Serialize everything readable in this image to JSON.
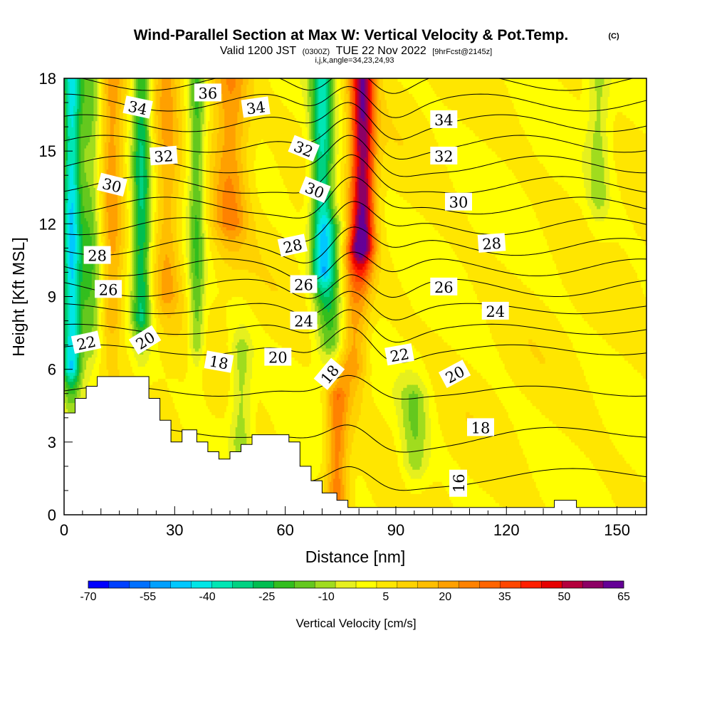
{
  "chart_data": {
    "type": "heatmap",
    "title": "Wind-Parallel Section at Max W: Vertical Velocity & Pot.Temp.",
    "title_mark": "(C)",
    "subtitle": {
      "valid": "Valid 1200 JST",
      "utc": "(0300Z)",
      "date": "TUE 22 Nov 2022",
      "fcst": "[9hrFcst@2145z]"
    },
    "indices": "i,j,k,angle=34,23,24,93",
    "xlabel": "Distance [nm]",
    "ylabel": "Height [Kft MSL]",
    "xlim": [
      0,
      158
    ],
    "ylim": [
      0,
      18
    ],
    "x_ticks": [
      {
        "value": 0,
        "label": "0"
      },
      {
        "value": 30,
        "label": "30"
      },
      {
        "value": 60,
        "label": "60"
      },
      {
        "value": 90,
        "label": "90"
      },
      {
        "value": 120,
        "label": "120"
      },
      {
        "value": 150,
        "label": "150"
      }
    ],
    "y_ticks": [
      {
        "value": 0,
        "label": "0"
      },
      {
        "value": 3,
        "label": "3"
      },
      {
        "value": 6,
        "label": "6"
      },
      {
        "value": 9,
        "label": "9"
      },
      {
        "value": 12,
        "label": "12"
      },
      {
        "value": 15,
        "label": "15"
      },
      {
        "value": 18,
        "label": "18"
      }
    ],
    "colorbar": {
      "label": "Vertical Velocity [cm/s]",
      "colors": [
        "#0000ff",
        "#0040ff",
        "#0070ff",
        "#00a0ff",
        "#00c8ff",
        "#00e6e6",
        "#00e6b4",
        "#00d282",
        "#00be50",
        "#32be1e",
        "#64c81e",
        "#a0dc1e",
        "#e6f01e",
        "#ffff00",
        "#ffe600",
        "#ffd200",
        "#ffbe00",
        "#ffa000",
        "#ff8200",
        "#ff6400",
        "#ff4600",
        "#ff1e00",
        "#e60000",
        "#b4003c",
        "#8c0064",
        "#640096"
      ],
      "labels": [
        {
          "value": -70,
          "label": "-70"
        },
        {
          "value": -55,
          "label": "-55"
        },
        {
          "value": -40,
          "label": "-40"
        },
        {
          "value": -25,
          "label": "-25"
        },
        {
          "value": -10,
          "label": "-10"
        },
        {
          "value": 5,
          "label": "5"
        },
        {
          "value": 20,
          "label": "20"
        },
        {
          "value": 35,
          "label": "35"
        },
        {
          "value": 50,
          "label": "50"
        },
        {
          "value": 65,
          "label": "65"
        }
      ],
      "range": [
        -70,
        65
      ]
    },
    "vertical_velocity_features": [
      {
        "x": 2,
        "ztop": 18,
        "zbot": 6,
        "amp": -45,
        "sx": 2.5
      },
      {
        "x": 7,
        "ztop": 18,
        "zbot": 7,
        "amp": -18,
        "sx": 3
      },
      {
        "x": 21,
        "ztop": 18,
        "zbot": 8,
        "amp": -30,
        "sx": 2.5
      },
      {
        "x": 36,
        "ztop": 18,
        "zbot": 7,
        "amp": -20,
        "sx": 2.2
      },
      {
        "x": 70,
        "ztop": 18,
        "zbot": 10,
        "amp": -38,
        "sx": 3
      },
      {
        "x": 73,
        "ztop": 12,
        "zbot": 7,
        "amp": -22,
        "sx": 4
      },
      {
        "x": 95,
        "ztop": 5,
        "zbot": 2,
        "amp": -15,
        "sx": 4
      },
      {
        "x": 81,
        "ztop": 18,
        "zbot": 11,
        "amp": 55,
        "sx": 3.2
      },
      {
        "x": 78,
        "ztop": 11,
        "zbot": 6,
        "amp": 22,
        "sx": 4
      },
      {
        "x": 74,
        "ztop": 5,
        "zbot": 0,
        "amp": 25,
        "sx": 3
      },
      {
        "x": 45,
        "ztop": 18,
        "zbot": 12,
        "amp": 22,
        "sx": 5
      },
      {
        "x": 13,
        "ztop": 18,
        "zbot": 8,
        "amp": 18,
        "sx": 3
      },
      {
        "x": 28,
        "ztop": 18,
        "zbot": 9,
        "amp": 16,
        "sx": 3.5
      },
      {
        "x": 145,
        "ztop": 18,
        "zbot": 13,
        "amp": -12,
        "sx": 3
      },
      {
        "x": 48,
        "ztop": 7,
        "zbot": 3,
        "amp": -14,
        "sx": 3
      }
    ],
    "isentropes_c": [
      16,
      17,
      18,
      19,
      20,
      21,
      22,
      23,
      24,
      25,
      26,
      27,
      28,
      29,
      30,
      31,
      32,
      33,
      34,
      35,
      36
    ],
    "contour_labels": [
      {
        "text": "36",
        "x": 39,
        "z": 17.4,
        "angle": 0
      },
      {
        "text": "34",
        "x": 20,
        "z": 16.8,
        "angle": 12
      },
      {
        "text": "34",
        "x": 52,
        "z": 16.8,
        "angle": -8
      },
      {
        "text": "34",
        "x": 103,
        "z": 16.3,
        "angle": 0
      },
      {
        "text": "32",
        "x": 27,
        "z": 14.8,
        "angle": -4
      },
      {
        "text": "32",
        "x": 65,
        "z": 15.1,
        "angle": 22
      },
      {
        "text": "32",
        "x": 103,
        "z": 14.8,
        "angle": 0
      },
      {
        "text": "30",
        "x": 13,
        "z": 13.6,
        "angle": 14
      },
      {
        "text": "30",
        "x": 68,
        "z": 13.4,
        "angle": 22
      },
      {
        "text": "30",
        "x": 107,
        "z": 12.9,
        "angle": 0
      },
      {
        "text": "28",
        "x": 9,
        "z": 10.7,
        "angle": 0
      },
      {
        "text": "28",
        "x": 62,
        "z": 11.1,
        "angle": -12
      },
      {
        "text": "28",
        "x": 116,
        "z": 11.2,
        "angle": -4
      },
      {
        "text": "26",
        "x": 12,
        "z": 9.3,
        "angle": 0
      },
      {
        "text": "26",
        "x": 65,
        "z": 9.5,
        "angle": 0
      },
      {
        "text": "26",
        "x": 103,
        "z": 9.4,
        "angle": 0
      },
      {
        "text": "24",
        "x": 65,
        "z": 8.0,
        "angle": 0
      },
      {
        "text": "24",
        "x": 117,
        "z": 8.4,
        "angle": 0
      },
      {
        "text": "22",
        "x": 6,
        "z": 7.1,
        "angle": -12
      },
      {
        "text": "22",
        "x": 91,
        "z": 6.6,
        "angle": -10
      },
      {
        "text": "20",
        "x": 22,
        "z": 7.2,
        "angle": -32
      },
      {
        "text": "20",
        "x": 58,
        "z": 6.5,
        "angle": 0
      },
      {
        "text": "20",
        "x": 106,
        "z": 5.8,
        "angle": -28
      },
      {
        "text": "18",
        "x": 42,
        "z": 6.3,
        "angle": 10
      },
      {
        "text": "18",
        "x": 72,
        "z": 5.8,
        "angle": -50
      },
      {
        "text": "18",
        "x": 113,
        "z": 3.6,
        "angle": 0
      },
      {
        "text": "16",
        "x": 107,
        "z": 1.3,
        "angle": -90
      }
    ],
    "terrain_profile": [
      [
        0,
        4.2
      ],
      [
        3,
        4.2
      ],
      [
        3,
        4.8
      ],
      [
        6,
        4.8
      ],
      [
        6,
        5.3
      ],
      [
        9,
        5.3
      ],
      [
        9,
        5.7
      ],
      [
        23,
        5.7
      ],
      [
        23,
        4.8
      ],
      [
        26,
        4.8
      ],
      [
        26,
        3.9
      ],
      [
        29,
        3.9
      ],
      [
        29,
        3.0
      ],
      [
        32,
        3.0
      ],
      [
        32,
        3.5
      ],
      [
        34,
        3.5
      ],
      [
        36,
        3.5
      ],
      [
        36,
        3.0
      ],
      [
        39,
        3.0
      ],
      [
        39,
        2.6
      ],
      [
        42,
        2.6
      ],
      [
        42,
        2.3
      ],
      [
        45,
        2.3
      ],
      [
        45,
        2.6
      ],
      [
        48,
        2.6
      ],
      [
        48,
        2.9
      ],
      [
        51,
        2.9
      ],
      [
        51,
        3.3
      ],
      [
        61,
        3.3
      ],
      [
        61,
        3.0
      ],
      [
        64,
        3.0
      ],
      [
        64,
        2.0
      ],
      [
        67,
        2.0
      ],
      [
        67,
        1.4
      ],
      [
        70,
        1.4
      ],
      [
        70,
        0.9
      ],
      [
        74,
        0.9
      ],
      [
        74,
        0.6
      ],
      [
        77,
        0.6
      ],
      [
        77,
        0.3
      ],
      [
        85,
        0.3
      ],
      [
        85,
        0.3
      ],
      [
        133,
        0.3
      ],
      [
        133,
        0.6
      ],
      [
        139,
        0.6
      ],
      [
        139,
        0.3
      ],
      [
        158,
        0.3
      ]
    ]
  }
}
